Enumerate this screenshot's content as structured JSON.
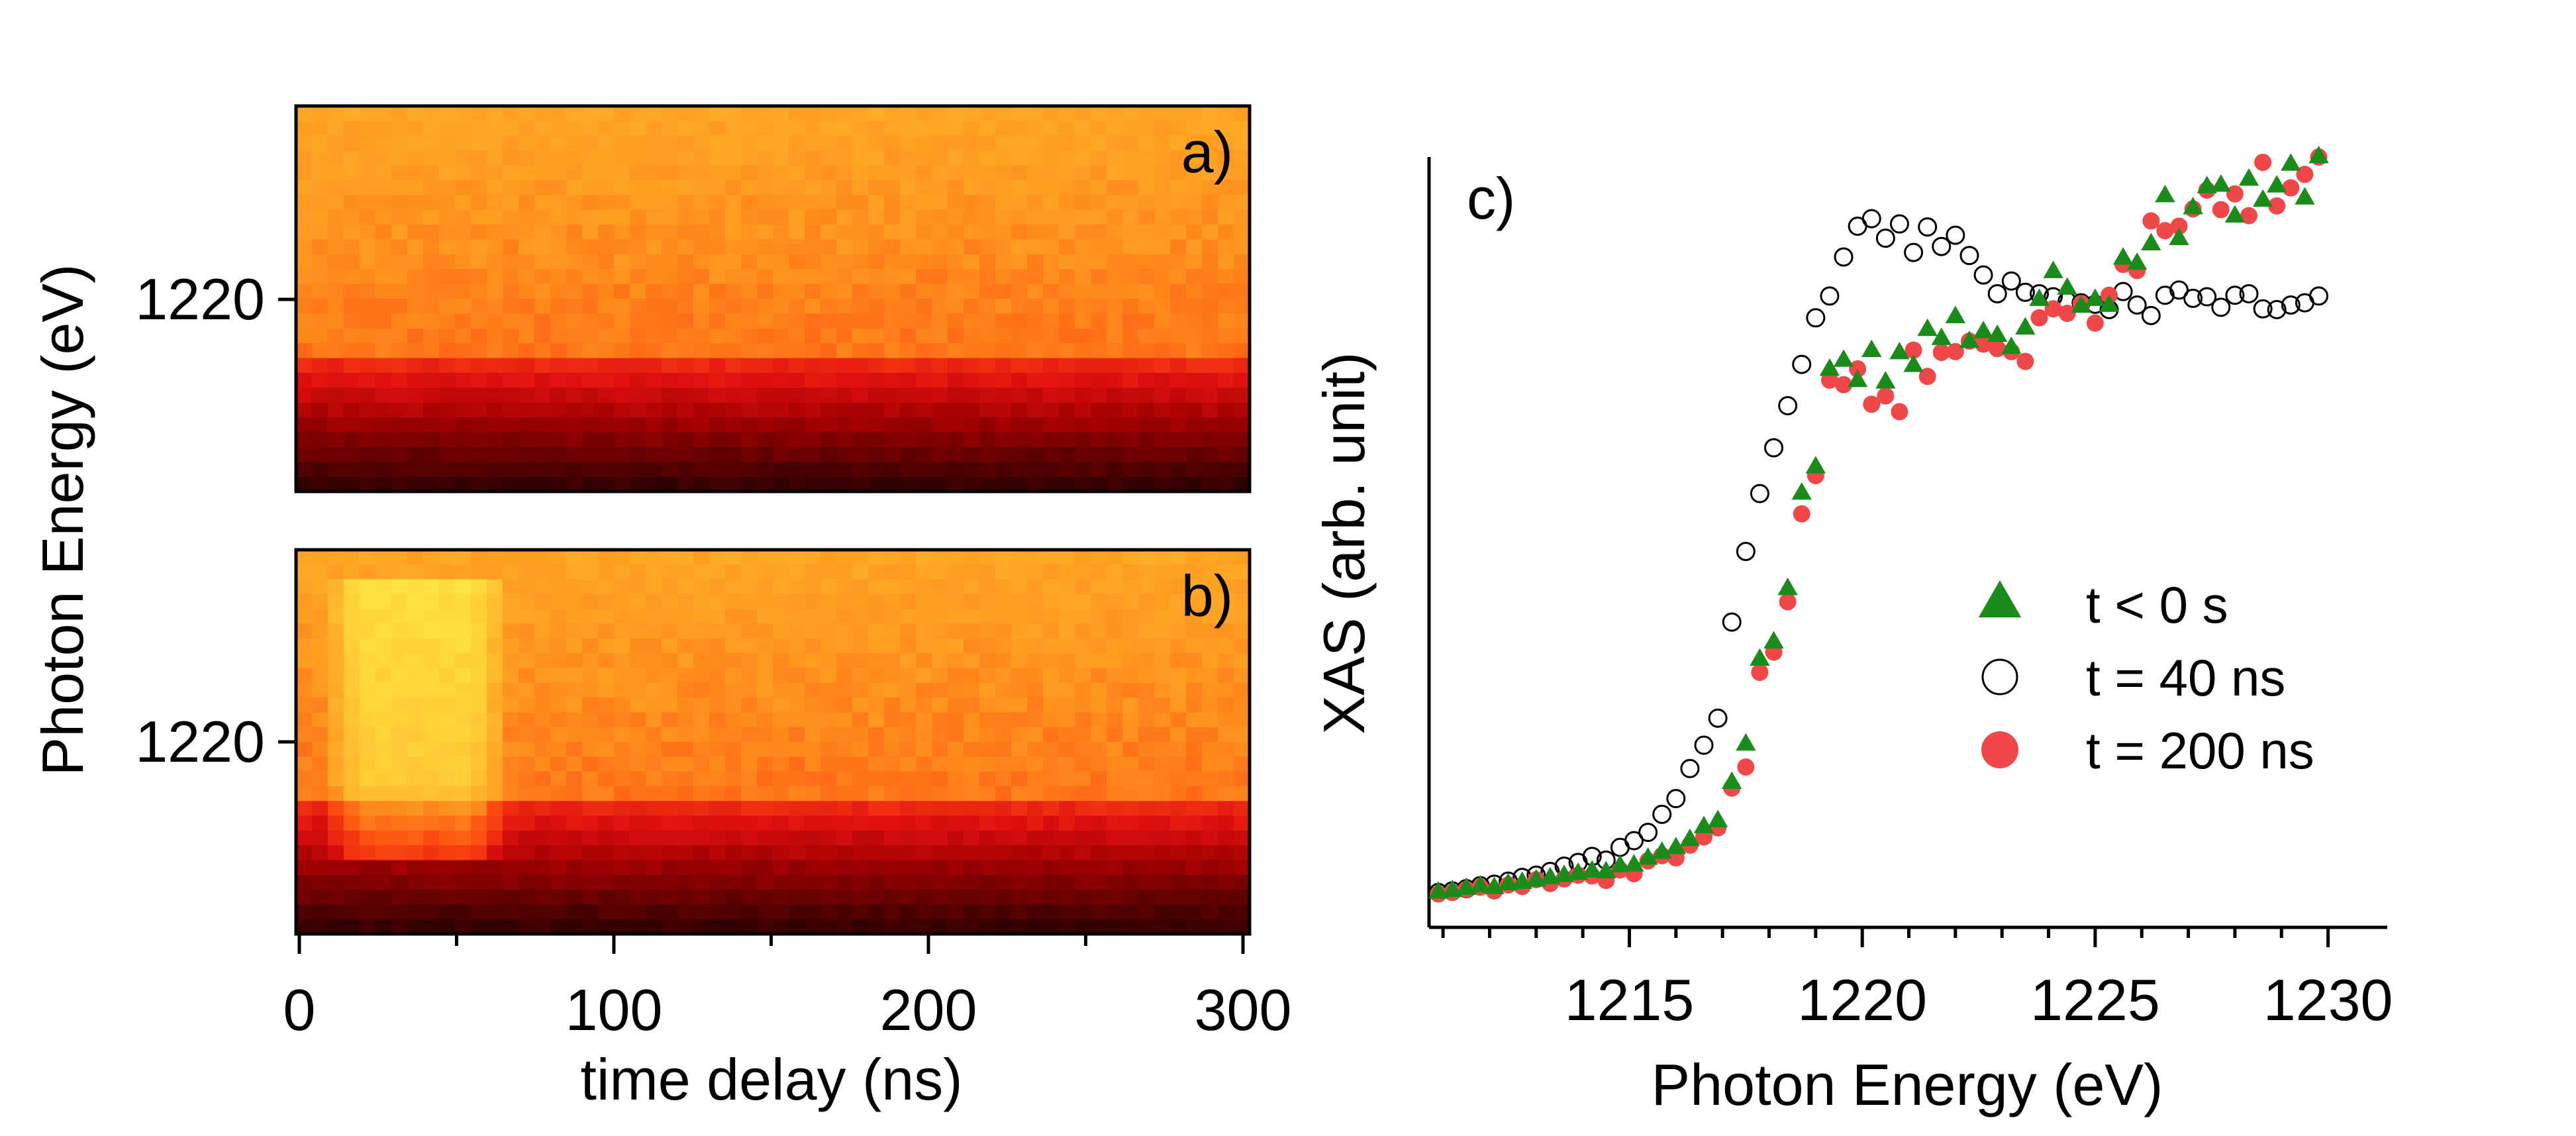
{
  "chart_data": [
    {
      "type": "heatmap",
      "panel_label": "a)",
      "ylabel": "Photon Energy (eV)",
      "ytick": "1220",
      "x_range": [
        0,
        300
      ],
      "description_values": {
        "edge_energy": 1217.5,
        "pre_edge_level": "dark red to black",
        "post_edge_level": "orange-yellow, uniform in time"
      },
      "colormap": [
        "#1a0000",
        "#5a0000",
        "#a00000",
        "#e01010",
        "#ff5010",
        "#ff9a20",
        "#ffc030",
        "#ffe040",
        "#ffff50"
      ]
    },
    {
      "type": "heatmap",
      "panel_label": "b)",
      "ytick": "1220",
      "xlabel": "time delay (ns)",
      "xticks": [
        "0",
        "100",
        "200",
        "300"
      ],
      "x_range": [
        0,
        300
      ],
      "description_values": {
        "edge_energy": 1217.5,
        "transient_window_ns": [
          10,
          65
        ],
        "transient_peak_energy": 1220
      }
    },
    {
      "type": "scatter",
      "panel_label": "c)",
      "xlabel": "Photon Energy (eV)",
      "ylabel": "XAS (arb. unit)",
      "xticks": [
        "1215",
        "1220",
        "1225",
        "1230"
      ],
      "xlim": [
        1210.7,
        1231.2
      ],
      "ylim": [
        0,
        1.0
      ],
      "legend_position": "right",
      "series": [
        {
          "name": "t < 0 s",
          "marker": "triangle",
          "color": "#1a8c1a",
          "x": [
            1210.9,
            1211.2,
            1211.5,
            1211.8,
            1212.1,
            1212.4,
            1212.7,
            1213.0,
            1213.3,
            1213.6,
            1213.9,
            1214.2,
            1214.5,
            1214.8,
            1215.1,
            1215.4,
            1215.7,
            1216.0,
            1216.3,
            1216.6,
            1216.9,
            1217.2,
            1217.5,
            1217.8,
            1218.1,
            1218.4,
            1218.7,
            1219.0,
            1219.3,
            1219.6,
            1219.9,
            1220.2,
            1220.5,
            1220.8,
            1221.1,
            1221.4,
            1221.7,
            1222.0,
            1222.3,
            1222.6,
            1222.9,
            1223.2,
            1223.5,
            1223.8,
            1224.1,
            1224.4,
            1224.7,
            1225.0,
            1225.3,
            1225.6,
            1225.9,
            1226.2,
            1226.5,
            1226.8,
            1227.1,
            1227.4,
            1227.7,
            1228.0,
            1228.3,
            1228.6,
            1228.9,
            1229.2,
            1229.5,
            1229.8
          ],
          "y": [
            0.021,
            0.023,
            0.026,
            0.029,
            0.027,
            0.032,
            0.034,
            0.037,
            0.04,
            0.043,
            0.046,
            0.049,
            0.048,
            0.056,
            0.057,
            0.066,
            0.074,
            0.08,
            0.091,
            0.108,
            0.116,
            0.167,
            0.218,
            0.331,
            0.354,
            0.425,
            0.552,
            0.587,
            0.717,
            0.729,
            0.702,
            0.742,
            0.7,
            0.739,
            0.722,
            0.77,
            0.758,
            0.787,
            0.754,
            0.767,
            0.762,
            0.746,
            0.772,
            0.81,
            0.847,
            0.825,
            0.801,
            0.81,
            0.802,
            0.865,
            0.858,
            0.884,
            0.948,
            0.891,
            0.932,
            0.96,
            0.962,
            0.921,
            0.97,
            0.942,
            0.961,
            0.99,
            0.945,
            1.0
          ]
        },
        {
          "name": "t = 40 ns",
          "marker": "open-circle",
          "color": "#000000",
          "x": [
            1210.9,
            1211.2,
            1211.5,
            1211.8,
            1212.1,
            1212.4,
            1212.7,
            1213.0,
            1213.3,
            1213.6,
            1213.9,
            1214.2,
            1214.5,
            1214.8,
            1215.1,
            1215.4,
            1215.7,
            1216.0,
            1216.3,
            1216.6,
            1216.9,
            1217.2,
            1217.5,
            1217.8,
            1218.1,
            1218.4,
            1218.7,
            1219.0,
            1219.3,
            1219.6,
            1219.9,
            1220.2,
            1220.5,
            1220.8,
            1221.1,
            1221.4,
            1221.7,
            1222.0,
            1222.3,
            1222.6,
            1222.9,
            1223.2,
            1223.5,
            1223.8,
            1224.1,
            1224.4,
            1224.7,
            1225.0,
            1225.3,
            1225.6,
            1225.9,
            1226.2,
            1226.5,
            1226.8,
            1227.1,
            1227.4,
            1227.7,
            1228.0,
            1228.3,
            1228.6,
            1228.9,
            1229.2,
            1229.5,
            1229.8
          ],
          "y": [
            0.02,
            0.022,
            0.025,
            0.029,
            0.031,
            0.035,
            0.04,
            0.043,
            0.048,
            0.055,
            0.06,
            0.068,
            0.063,
            0.08,
            0.089,
            0.1,
            0.124,
            0.145,
            0.185,
            0.216,
            0.252,
            0.38,
            0.474,
            0.551,
            0.612,
            0.668,
            0.723,
            0.785,
            0.814,
            0.866,
            0.907,
            0.917,
            0.891,
            0.91,
            0.872,
            0.906,
            0.88,
            0.895,
            0.868,
            0.842,
            0.817,
            0.834,
            0.819,
            0.817,
            0.813,
            0.807,
            0.805,
            0.803,
            0.796,
            0.82,
            0.802,
            0.788,
            0.815,
            0.822,
            0.811,
            0.813,
            0.799,
            0.815,
            0.817,
            0.797,
            0.796,
            0.802,
            0.805,
            0.814
          ]
        },
        {
          "name": "t = 200 ns",
          "marker": "filled-circle",
          "color": "#f04848",
          "x": [
            1210.9,
            1211.2,
            1211.5,
            1211.8,
            1212.1,
            1212.4,
            1212.7,
            1213.0,
            1213.3,
            1213.6,
            1213.9,
            1214.2,
            1214.5,
            1214.8,
            1215.1,
            1215.4,
            1215.7,
            1216.0,
            1216.3,
            1216.6,
            1216.9,
            1217.2,
            1217.5,
            1217.8,
            1218.1,
            1218.4,
            1218.7,
            1219.0,
            1219.3,
            1219.6,
            1219.9,
            1220.2,
            1220.5,
            1220.8,
            1221.1,
            1221.4,
            1221.7,
            1222.0,
            1222.3,
            1222.6,
            1222.9,
            1223.2,
            1223.5,
            1223.8,
            1224.1,
            1224.4,
            1224.7,
            1225.0,
            1225.3,
            1225.6,
            1225.9,
            1226.2,
            1226.5,
            1226.8,
            1227.1,
            1227.4,
            1227.7,
            1228.0,
            1228.3,
            1228.6,
            1228.9,
            1229.2,
            1229.5,
            1229.8
          ],
          "y": [
            0.018,
            0.02,
            0.024,
            0.027,
            0.022,
            0.03,
            0.028,
            0.037,
            0.032,
            0.038,
            0.043,
            0.042,
            0.036,
            0.05,
            0.045,
            0.062,
            0.069,
            0.066,
            0.083,
            0.094,
            0.106,
            0.159,
            0.187,
            0.313,
            0.34,
            0.407,
            0.524,
            0.575,
            0.702,
            0.696,
            0.717,
            0.67,
            0.681,
            0.66,
            0.742,
            0.707,
            0.739,
            0.74,
            0.754,
            0.75,
            0.744,
            0.74,
            0.727,
            0.785,
            0.797,
            0.791,
            0.804,
            0.778,
            0.815,
            0.856,
            0.848,
            0.914,
            0.901,
            0.907,
            0.93,
            0.955,
            0.929,
            0.95,
            0.921,
            0.992,
            0.934,
            0.958,
            0.976,
            0.999
          ]
        }
      ]
    }
  ]
}
